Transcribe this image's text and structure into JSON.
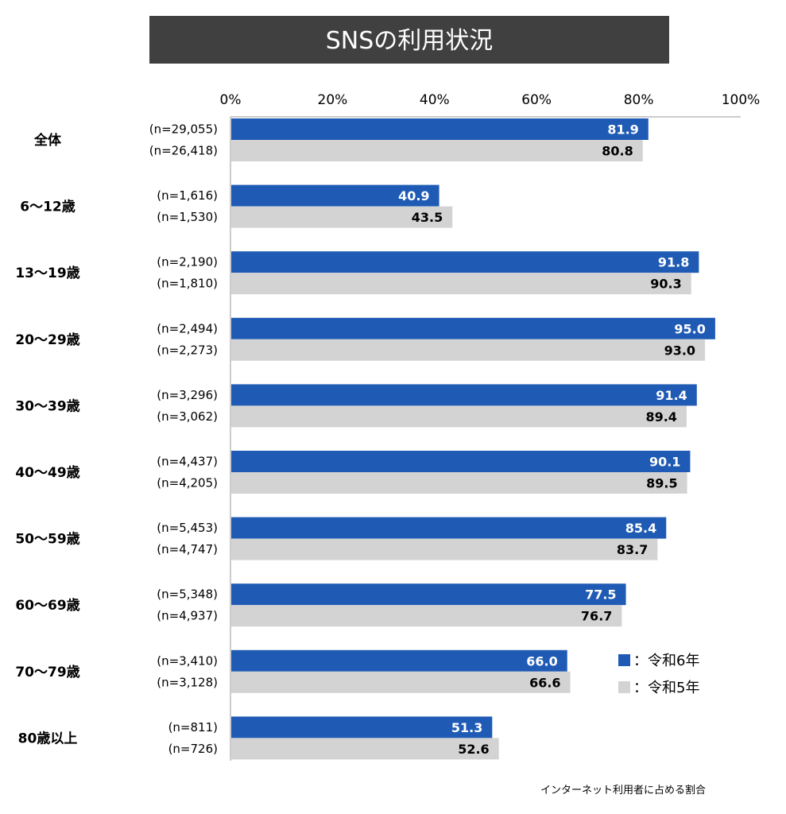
{
  "chart_data": {
    "type": "bar",
    "orientation": "horizontal",
    "title": "SNSの利用状況",
    "categories": [
      "全体",
      "6～12歳",
      "13～19歳",
      "20～29歳",
      "30～39歳",
      "40～49歳",
      "50～59歳",
      "60～69歳",
      "70～79歳",
      "80歳以上"
    ],
    "series": [
      {
        "name": "令和6年",
        "legend_label": "：令和6年",
        "color": "#1f5bb5",
        "values": [
          81.9,
          40.9,
          91.8,
          95.0,
          91.4,
          90.1,
          85.4,
          77.5,
          66.0,
          51.3
        ],
        "value_labels": [
          "81.9",
          "40.9",
          "91.8",
          "95.0",
          "91.4",
          "90.1",
          "85.4",
          "77.5",
          "66.0",
          "51.3"
        ],
        "n_labels": [
          "(n=29,055)",
          "(n=1,616)",
          "(n=2,190)",
          "(n=2,494)",
          "(n=3,296)",
          "(n=4,437)",
          "(n=5,453)",
          "(n=5,348)",
          "(n=3,410)",
          "(n=811)"
        ]
      },
      {
        "name": "令和5年",
        "legend_label": "：令和5年",
        "color": "#d3d3d3",
        "values": [
          80.8,
          43.5,
          90.3,
          93.0,
          89.4,
          89.5,
          83.7,
          76.7,
          66.6,
          52.6
        ],
        "value_labels": [
          "80.8",
          "43.5",
          "90.3",
          "93.0",
          "89.4",
          "89.5",
          "83.7",
          "76.7",
          "66.6",
          "52.6"
        ],
        "n_labels": [
          "(n=26,418)",
          "(n=1,530)",
          "(n=1,810)",
          "(n=2,273)",
          "(n=3,062)",
          "(n=4,205)",
          "(n=4,747)",
          "(n=4,937)",
          "(n=3,128)",
          "(n=726)"
        ]
      }
    ],
    "xlim": [
      0,
      100
    ],
    "x_ticks": [
      0,
      20,
      40,
      60,
      80,
      100
    ],
    "x_tick_labels": [
      "0%",
      "20%",
      "40%",
      "60%",
      "80%",
      "100%"
    ],
    "legend_position": "bottom-right",
    "footnote": "インターネット利用者に占める割合",
    "grid": false
  }
}
